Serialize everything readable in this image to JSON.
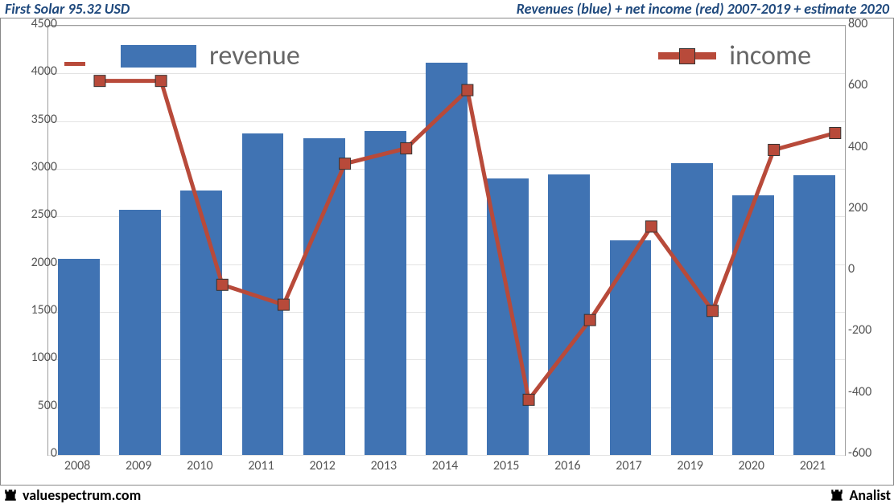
{
  "header": {
    "left": "First Solar 95.32 USD",
    "right": "Revenues (blue) + net income (red) 2007-2019 + estimate 2020"
  },
  "footer": {
    "left": "valuespectrum.com",
    "right": "Analist"
  },
  "chart": {
    "type": "bar+line",
    "background_color": "#ffffff",
    "grid_color": "#e3e3e3",
    "border_color": "#9d9d9d",
    "title_color": "#1f497d",
    "title_fontsize": 18,
    "tick_fontsize": 16,
    "legend_fontsize": 34,
    "legend": {
      "revenue": "revenue",
      "income": "income"
    },
    "categories": [
      "2008",
      "2009",
      "2010",
      "2011",
      "2012",
      "2013",
      "2014",
      "2015",
      "2016",
      "2017",
      "2019",
      "2020",
      "2021"
    ],
    "revenue": {
      "values": [
        2060,
        2570,
        2770,
        3370,
        3320,
        3400,
        4110,
        2900,
        2940,
        2250,
        3060,
        2720,
        2930
      ],
      "color": "#4073b3",
      "bar_width_ratio": 0.68
    },
    "income": {
      "values": [
        620,
        620,
        -45,
        -110,
        350,
        400,
        590,
        -420,
        -160,
        145,
        -130,
        395,
        450
      ],
      "color": "#b84a3a",
      "marker_size": 14,
      "line_width": 5
    },
    "y_left": {
      "min": 0,
      "max": 4500,
      "step": 500
    },
    "y_right": {
      "min": -600,
      "max": 800,
      "step": 200
    }
  }
}
